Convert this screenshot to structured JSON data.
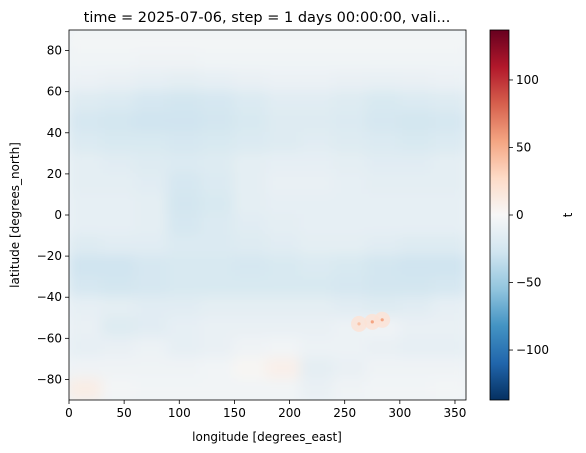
{
  "chart_data": {
    "type": "heatmap",
    "title": "time = 2025-07-06, step = 1 days 00:00:00, vali...",
    "xlabel": "longitude [degrees_east]",
    "ylabel": "latitude [degrees_north]",
    "xlim": [
      0,
      360
    ],
    "ylim": [
      -90,
      90
    ],
    "x_ticks": [
      0,
      50,
      100,
      150,
      200,
      250,
      300,
      350
    ],
    "y_ticks": [
      -80,
      -60,
      -40,
      -20,
      0,
      20,
      40,
      60,
      80
    ],
    "colormap": "RdBu_r",
    "colorbar": {
      "label": "t",
      "vmin": -137,
      "vmax": 137,
      "ticks": [
        -100,
        -50,
        0,
        50,
        100
      ]
    },
    "grid": false,
    "field": {
      "lat": [
        85,
        75,
        65,
        55,
        45,
        35,
        25,
        15,
        5,
        -5,
        -15,
        -25,
        -35,
        -45,
        -55,
        -65,
        -75,
        -85
      ],
      "lon": [
        15,
        45,
        75,
        105,
        135,
        165,
        195,
        225,
        255,
        285,
        315,
        345
      ],
      "values": [
        [
          -3,
          -3,
          -3,
          -3,
          -3,
          -3,
          -3,
          -3,
          -3,
          -3,
          -3,
          -3
        ],
        [
          -5,
          -5,
          -6,
          -6,
          -5,
          -5,
          -5,
          -5,
          -5,
          -5,
          -5,
          -5
        ],
        [
          -9,
          -10,
          -12,
          -14,
          -12,
          -10,
          -9,
          -9,
          -10,
          -11,
          -10,
          -9
        ],
        [
          -18,
          -20,
          -24,
          -26,
          -24,
          -20,
          -16,
          -16,
          -18,
          -22,
          -20,
          -18
        ],
        [
          -24,
          -26,
          -28,
          -28,
          -26,
          -22,
          -18,
          -18,
          -20,
          -24,
          -26,
          -24
        ],
        [
          -20,
          -22,
          -22,
          -24,
          -22,
          -20,
          -18,
          -16,
          -18,
          -20,
          -22,
          -20
        ],
        [
          -14,
          -16,
          -18,
          -20,
          -18,
          -14,
          -12,
          -12,
          -14,
          -16,
          -16,
          -14
        ],
        [
          -14,
          -14,
          -16,
          -24,
          -20,
          -14,
          -10,
          -10,
          -12,
          -14,
          -14,
          -14
        ],
        [
          -12,
          -12,
          -14,
          -26,
          -22,
          -14,
          -12,
          -12,
          -12,
          -12,
          -12,
          -12
        ],
        [
          -12,
          -12,
          -14,
          -24,
          -20,
          -16,
          -14,
          -12,
          -12,
          -12,
          -12,
          -12
        ],
        [
          -18,
          -16,
          -16,
          -20,
          -20,
          -18,
          -16,
          -14,
          -14,
          -16,
          -18,
          -18
        ],
        [
          -28,
          -28,
          -24,
          -22,
          -22,
          -24,
          -22,
          -20,
          -22,
          -26,
          -28,
          -28
        ],
        [
          -24,
          -26,
          -24,
          -22,
          -22,
          -22,
          -22,
          -22,
          -24,
          -26,
          -26,
          -24
        ],
        [
          -12,
          -14,
          -16,
          -16,
          -14,
          -14,
          -14,
          -14,
          -16,
          -18,
          -16,
          -12
        ],
        [
          -10,
          -18,
          -16,
          -12,
          -10,
          -10,
          -10,
          -10,
          -8,
          -6,
          -10,
          -10
        ],
        [
          -12,
          -10,
          -8,
          -12,
          -10,
          -6,
          -4,
          -8,
          -8,
          -10,
          -12,
          -12
        ],
        [
          -6,
          -6,
          -6,
          -6,
          -4,
          2,
          8,
          -14,
          -10,
          -6,
          -6,
          -6
        ],
        [
          10,
          -3,
          -4,
          -4,
          -4,
          -4,
          -4,
          -10,
          -6,
          -4,
          -4,
          -3
        ]
      ]
    },
    "annotations": [
      {
        "lon": 263,
        "lat": -53,
        "value": 40
      },
      {
        "lon": 275,
        "lat": -52,
        "value": 55
      },
      {
        "lon": 284,
        "lat": -51,
        "value": 55
      }
    ]
  }
}
